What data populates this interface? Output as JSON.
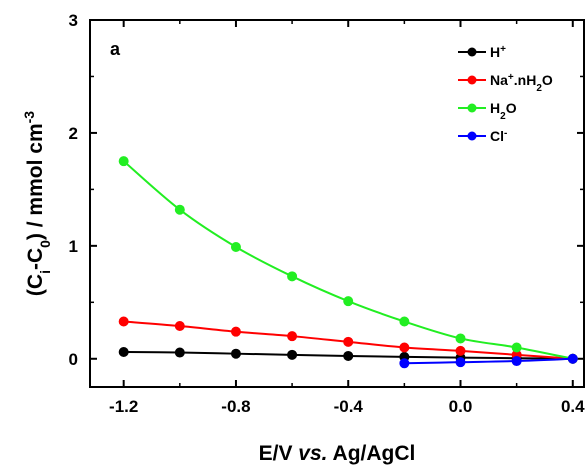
{
  "chart_data": {
    "type": "line",
    "panel_label": "a",
    "xlabel": {
      "main": "E/V ",
      "italic": "vs.",
      "rest": " Ag/AgCl"
    },
    "ylabel": "(C_i-C_0) / mmol cm^-3",
    "ylabel_parts": {
      "open": "(C",
      "sub1": "i",
      "mid": "-C",
      "sub2": "0",
      "unit": ") / mmol cm",
      "sup": "-3"
    },
    "xlim": [
      -1.32,
      0.44
    ],
    "ylim": [
      -0.25,
      3.0
    ],
    "x_ticks": [
      -1.2,
      -0.8,
      -0.4,
      0.0,
      0.4
    ],
    "x_tick_labels": [
      "-1.2",
      "-0.8",
      "-0.4",
      "0.0",
      "0.4"
    ],
    "y_ticks": [
      0,
      1,
      2,
      3
    ],
    "y_tick_labels": [
      "0",
      "1",
      "2",
      "3"
    ],
    "legend_position": "top-right",
    "grid": false,
    "series": [
      {
        "name": "H+",
        "legend": {
          "base": "H",
          "sup": "+",
          "sub": "",
          "tail": ""
        },
        "color": "#000000",
        "x": [
          -1.2,
          -1.0,
          -0.8,
          -0.6,
          -0.4,
          -0.2,
          0.0,
          0.2,
          0.4
        ],
        "y": [
          0.06,
          0.055,
          0.045,
          0.035,
          0.025,
          0.017,
          0.01,
          0.005,
          0.0
        ]
      },
      {
        "name": "Na+.nH2O",
        "legend": {
          "base": "Na",
          "sup": "+",
          "mid": ".nH",
          "sub": "2",
          "tail": "O"
        },
        "color": "#ff0000",
        "x": [
          -1.2,
          -1.0,
          -0.8,
          -0.6,
          -0.4,
          -0.2,
          0.0,
          0.2,
          0.4
        ],
        "y": [
          0.33,
          0.29,
          0.24,
          0.2,
          0.15,
          0.1,
          0.07,
          0.035,
          0.0
        ]
      },
      {
        "name": "H2O",
        "legend": {
          "base": "H",
          "sup": "",
          "sub": "2",
          "tail": "O"
        },
        "color": "#22ee22",
        "x": [
          -1.2,
          -1.0,
          -0.8,
          -0.6,
          -0.4,
          -0.2,
          0.0,
          0.2,
          0.4
        ],
        "y": [
          1.75,
          1.32,
          0.99,
          0.73,
          0.51,
          0.33,
          0.18,
          0.1,
          0.0
        ]
      },
      {
        "name": "Cl-",
        "legend": {
          "base": "Cl",
          "sup": "-",
          "sub": "",
          "tail": ""
        },
        "color": "#0000ff",
        "x": [
          -0.2,
          0.0,
          0.2,
          0.4
        ],
        "y": [
          -0.04,
          -0.03,
          -0.02,
          0.0
        ]
      }
    ]
  }
}
